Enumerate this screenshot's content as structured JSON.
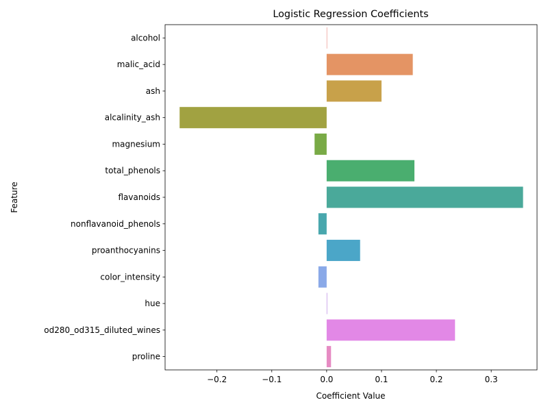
{
  "chart_data": {
    "type": "bar",
    "orientation": "horizontal",
    "title": "Logistic Regression Coefficients",
    "xlabel": "Coefficient Value",
    "ylabel": "Feature",
    "xlim": [
      -0.2945,
      0.3835
    ],
    "xticks": [
      -0.2,
      -0.1,
      0.0,
      0.1,
      0.2,
      0.3
    ],
    "xtick_labels": [
      "−0.2",
      "−0.1",
      "0.0",
      "0.1",
      "0.2",
      "0.3"
    ],
    "grid": false,
    "legend": "none",
    "categories": [
      "alcohol",
      "malic_acid",
      "ash",
      "alcalinity_ash",
      "magnesium",
      "total_phenols",
      "flavanoids",
      "nonflavanoid_phenols",
      "proanthocyanins",
      "color_intensity",
      "hue",
      "od280_od315_diluted_wines",
      "proline"
    ],
    "values": [
      0.0,
      0.157,
      0.1,
      -0.268,
      -0.022,
      0.16,
      0.358,
      -0.015,
      0.061,
      -0.015,
      0.001,
      0.234,
      0.008
    ],
    "colors": [
      "#e8817a",
      "#e49464",
      "#c8a14a",
      "#a1a241",
      "#79aa46",
      "#4aae6f",
      "#4aa99a",
      "#48a7ad",
      "#4ba6c8",
      "#8aa9e8",
      "#c194e6",
      "#e288e6",
      "#e68bc3"
    ]
  }
}
